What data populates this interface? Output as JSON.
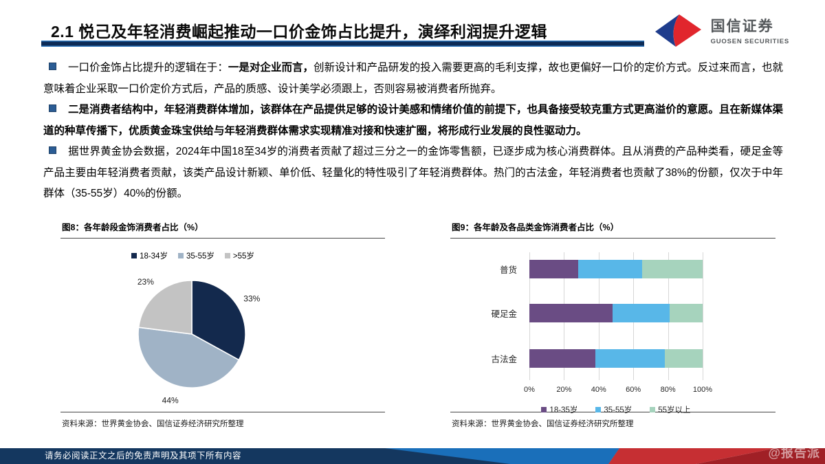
{
  "header": {
    "title": "2.1 悦己及年轻消费崛起推动一口价金饰占比提升，演绎利润提升逻辑"
  },
  "logo": {
    "name_cn": "国信证券",
    "name_en": "GUOSEN SECURITIES",
    "blue": "#1e3c8c",
    "red": "#e1262d"
  },
  "bullets": [
    {
      "segments": [
        {
          "text": "一口价金饰占比提升的逻辑在于：",
          "bold": false
        },
        {
          "text": "一是对企业而言，",
          "bold": true
        },
        {
          "text": "创新设计和产品研发的投入需要更高的毛利支撑，故也更偏好一口价的定价方式。反过来而言，也就意味着企业采取一口价定价方式后，产品的质感、设计美学必须跟上，否则容易被消费者所抛弃。",
          "bold": false
        }
      ]
    },
    {
      "segments": [
        {
          "text": "二是消费者结构中，年轻消费群体增加，该群体在产品提供足够的设计美感和情绪价值的前提下，也具备接受较克重方式更高溢价的意愿。且在新媒体渠道的种草传播下，优质黄金珠宝供给与年轻消费群体需求实现精准对接和快速扩圈，将形成行业发展的良性驱动力。",
          "bold": true
        }
      ]
    },
    {
      "segments": [
        {
          "text": "据世界黄金协会数据，2024年中国18至34岁的消费者贡献了超过三分之一的金饰零售额，已逐步成为核心消费群体。且从消费的产品种类看，硬足金等产品主要由年轻消费者贡献，该类产品设计新颖、单价低、轻量化的特性吸引了年轻消费群体。热门的古法金，年轻消费者也贡献了38%的份额，仅次于中年群体（35-55岁）40%的份额。",
          "bold": false
        }
      ]
    }
  ],
  "figures": {
    "fig8": {
      "title": "图8：各年龄段金饰消费者占比（%）",
      "source": "资料来源：世界黄金协会、国信证券经济研究所整理"
    },
    "fig9": {
      "title": "图9：各年龄及各品类金饰消费者占比（%）",
      "source": "资料来源：世界黄金协会、国信证券经济研究所整理"
    }
  },
  "chart_data": [
    {
      "type": "pie",
      "title": "图8：各年龄段金饰消费者占比（%）",
      "labels": [
        "18-34岁",
        "35-55岁",
        ">55岁"
      ],
      "values": [
        33,
        44,
        23
      ],
      "data_labels": [
        "33%",
        "44%",
        "23%"
      ],
      "colors": [
        "#13294d",
        "#a0b3c6",
        "#c3c3c3"
      ],
      "start_angle": "top",
      "direction": "clockwise",
      "legend_position": "top"
    },
    {
      "type": "bar",
      "orientation": "horizontal",
      "stacked": true,
      "title": "图9：各年龄及各品类金饰消费者占比（%）",
      "categories": [
        "普货",
        "硬足金",
        "古法金"
      ],
      "series": [
        {
          "name": "18-35岁",
          "color": "#6a4c84",
          "values": [
            28,
            48,
            38
          ]
        },
        {
          "name": "35-55岁",
          "color": "#58b7e8",
          "values": [
            37,
            33,
            40
          ]
        },
        {
          "name": "55岁以上",
          "color": "#a6d3bd",
          "values": [
            35,
            19,
            22
          ]
        }
      ],
      "x_ticks": [
        "0%",
        "20%",
        "40%",
        "60%",
        "80%",
        "100%"
      ],
      "xlim": [
        0,
        100
      ],
      "grid": true,
      "legend_position": "bottom"
    }
  ],
  "footer": {
    "disclaimer": "请务必阅读正文之后的免责声明及其项下所有内容",
    "watermark": "@报告派",
    "navy": "#14375f",
    "blue": "#1a6fba",
    "red_bright": "#c62f33",
    "red_dark": "#a02026"
  },
  "colors": {
    "accent_navy": "#0d2b56",
    "accent_blue": "#2f7ac0",
    "bullet_square": "#2b5c94"
  }
}
